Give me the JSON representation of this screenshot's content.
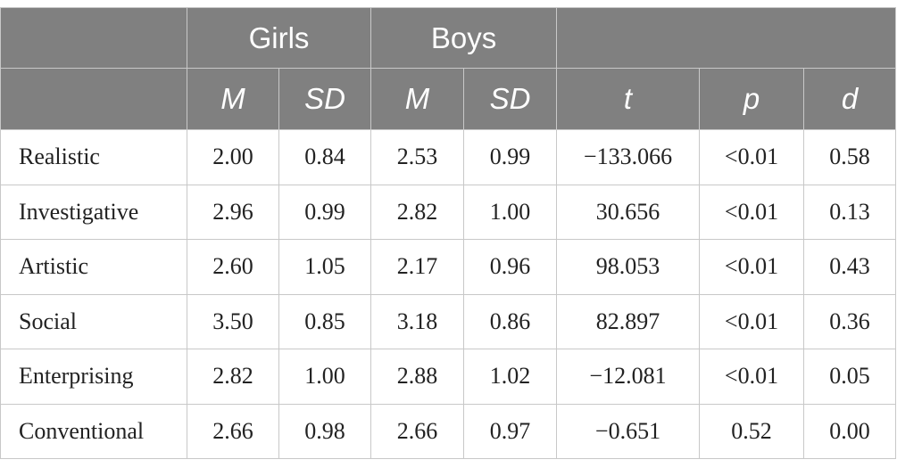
{
  "header": {
    "groups": [
      "Girls",
      "Boys"
    ],
    "columns": [
      "M",
      "SD",
      "M",
      "SD",
      "t",
      "p",
      "d"
    ]
  },
  "rows": [
    {
      "label": "Realistic",
      "cells": [
        "2.00",
        "0.84",
        "2.53",
        "0.99",
        "−133.066",
        "<0.01",
        "0.58"
      ]
    },
    {
      "label": "Investigative",
      "cells": [
        "2.96",
        "0.99",
        "2.82",
        "1.00",
        "30.656",
        "<0.01",
        "0.13"
      ]
    },
    {
      "label": "Artistic",
      "cells": [
        "2.60",
        "1.05",
        "2.17",
        "0.96",
        "98.053",
        "<0.01",
        "0.43"
      ]
    },
    {
      "label": "Social",
      "cells": [
        "3.50",
        "0.85",
        "3.18",
        "0.86",
        "82.897",
        "<0.01",
        "0.36"
      ]
    },
    {
      "label": "Enterprising",
      "cells": [
        "2.82",
        "1.00",
        "2.88",
        "1.02",
        "−12.081",
        "<0.01",
        "0.05"
      ]
    },
    {
      "label": "Conventional",
      "cells": [
        "2.66",
        "0.98",
        "2.66",
        "0.97",
        "−0.651",
        "0.52",
        "0.00"
      ]
    }
  ],
  "colors": {
    "header_bg": "#808080",
    "header_text": "#ffffff",
    "grid": "#c8c8c8",
    "body_text": "#222222"
  }
}
